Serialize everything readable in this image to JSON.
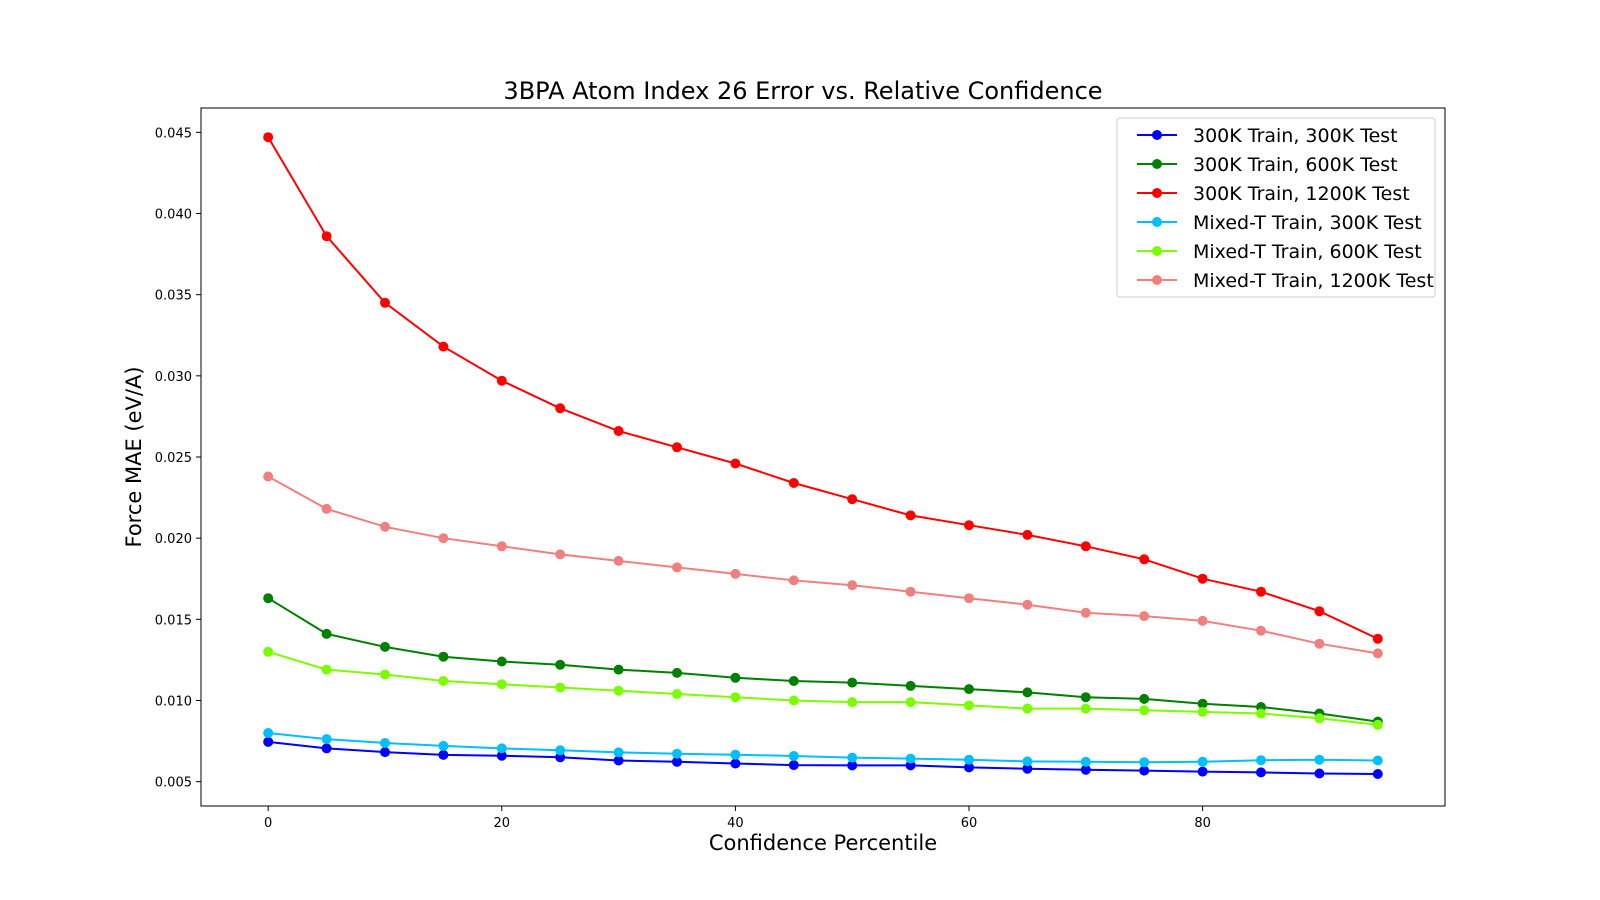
{
  "chart_data": {
    "type": "line",
    "title": "3BPA Atom Index 26 Error vs. Relative Confidence",
    "xlabel": "Confidence Percentile",
    "ylabel": "Force MAE (eV/A)",
    "xlim": [
      -5.75,
      100.75
    ],
    "ylim": [
      0.0035,
      0.0465
    ],
    "xticks": [
      0,
      20,
      40,
      60,
      80
    ],
    "yticks": [
      0.005,
      0.01,
      0.015,
      0.02,
      0.025,
      0.03,
      0.035,
      0.04,
      0.045
    ],
    "ytick_labels": [
      "0.005",
      "0.010",
      "0.015",
      "0.020",
      "0.025",
      "0.030",
      "0.035",
      "0.040",
      "0.045"
    ],
    "grid": false,
    "legend_position": "top-right",
    "x": [
      0,
      5,
      10,
      15,
      20,
      25,
      30,
      35,
      40,
      45,
      50,
      55,
      60,
      65,
      70,
      75,
      80,
      85,
      90,
      95
    ],
    "series": [
      {
        "name": "300K Train, 300K Test",
        "color": "#0000ff",
        "values": [
          0.00745,
          0.00705,
          0.00682,
          0.00665,
          0.0066,
          0.0065,
          0.0063,
          0.00622,
          0.00612,
          0.00602,
          0.006,
          0.006,
          0.00588,
          0.0058,
          0.00573,
          0.00568,
          0.00562,
          0.00557,
          0.0055,
          0.00547
        ]
      },
      {
        "name": "300K Train, 600K Test",
        "color": "#008000",
        "values": [
          0.0163,
          0.0141,
          0.0133,
          0.0127,
          0.0124,
          0.0122,
          0.0119,
          0.0117,
          0.0114,
          0.0112,
          0.0111,
          0.0109,
          0.0107,
          0.0105,
          0.0102,
          0.0101,
          0.0098,
          0.0096,
          0.0092,
          0.0087
        ]
      },
      {
        "name": "300K Train, 1200K Test",
        "color": "#ff0000",
        "values": [
          0.0447,
          0.0386,
          0.0345,
          0.0318,
          0.0297,
          0.028,
          0.0266,
          0.0256,
          0.0246,
          0.0234,
          0.0224,
          0.0214,
          0.0208,
          0.0202,
          0.0195,
          0.0187,
          0.0175,
          0.0167,
          0.0155,
          0.0138
        ]
      },
      {
        "name": "Mixed-T Train, 300K Test",
        "color": "#00bfff",
        "values": [
          0.008,
          0.00762,
          0.00738,
          0.0072,
          0.00705,
          0.00693,
          0.0068,
          0.00672,
          0.00666,
          0.00658,
          0.00648,
          0.00642,
          0.00635,
          0.00625,
          0.00622,
          0.0062,
          0.00622,
          0.00632,
          0.00635,
          0.0063
        ]
      },
      {
        "name": "Mixed-T Train, 600K Test",
        "color": "#7cfc00",
        "values": [
          0.013,
          0.0119,
          0.0116,
          0.0112,
          0.011,
          0.0108,
          0.0106,
          0.0104,
          0.0102,
          0.01,
          0.0099,
          0.0099,
          0.0097,
          0.0095,
          0.0095,
          0.0094,
          0.0093,
          0.0092,
          0.0089,
          0.0085
        ]
      },
      {
        "name": "Mixed-T Train, 1200K Test",
        "color": "#f08080",
        "values": [
          0.0238,
          0.0218,
          0.0207,
          0.02,
          0.0195,
          0.019,
          0.0186,
          0.0182,
          0.0178,
          0.0174,
          0.0171,
          0.0167,
          0.0163,
          0.0159,
          0.0154,
          0.0152,
          0.0149,
          0.0143,
          0.0135,
          0.0129
        ]
      }
    ]
  }
}
